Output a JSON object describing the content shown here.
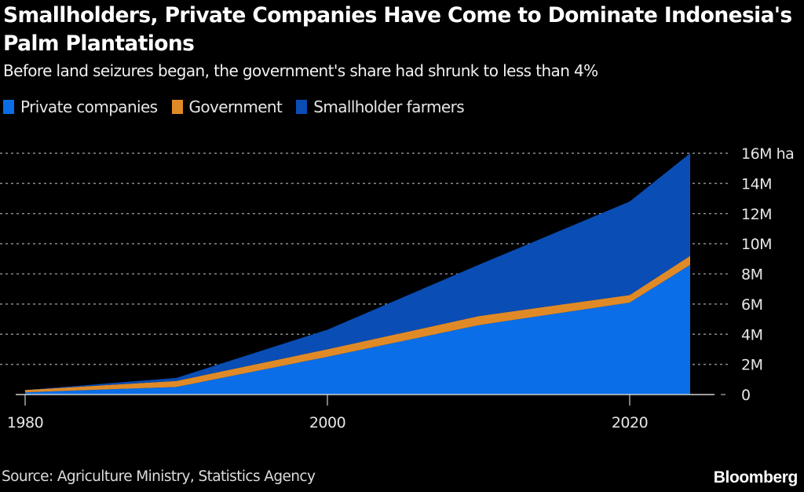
{
  "title": "Smallholders, Private Companies Have Come to Dominate Indonesia's Palm Plantations",
  "subtitle": "Before land seizures began, the government's share had shrunk to less than 4%",
  "source": "Source: Agriculture Ministry, Statistics Agency",
  "brand": "Bloomberg",
  "colors": {
    "private": "#0a6ee8",
    "government": "#e08a27",
    "smallholder": "#0a4db5",
    "grid": "#8a8a8a",
    "axis": "#cfcfcf",
    "background": "#000000"
  },
  "chart_data": {
    "type": "area",
    "stacked": true,
    "title": "Smallholders, Private Companies Have Come to Dominate Indonesia's Palm Plantations",
    "subtitle": "Before land seizures began, the government's share had shrunk to less than 4%",
    "xlabel": "",
    "ylabel": "Hectares",
    "y_unit_label": "16M ha",
    "x": [
      1980,
      1990,
      2000,
      2010,
      2020,
      2024
    ],
    "series": [
      {
        "name": "Private companies",
        "key": "private",
        "values": [
          0.15,
          0.5,
          2.5,
          4.6,
          6.1,
          8.6
        ]
      },
      {
        "name": "Government",
        "key": "government",
        "values": [
          0.15,
          0.4,
          0.5,
          0.6,
          0.5,
          0.6
        ]
      },
      {
        "name": "Smallholder farmers",
        "key": "smallholder",
        "values": [
          0.0,
          0.2,
          1.3,
          3.4,
          6.2,
          6.8
        ]
      }
    ],
    "xlim": [
      1980,
      2024
    ],
    "ylim": [
      0,
      16
    ],
    "x_ticks": [
      1980,
      2000,
      2020
    ],
    "x_tick_labels": [
      "1980",
      "2000",
      "2020"
    ],
    "y_ticks": [
      0,
      2,
      4,
      6,
      8,
      10,
      12,
      14,
      16
    ],
    "y_tick_labels": [
      "0",
      "2M",
      "4M",
      "6M",
      "8M",
      "10M",
      "12M",
      "14M",
      "16M ha"
    ],
    "grid": true,
    "legend": "top-left",
    "y_axis_side": "right"
  }
}
